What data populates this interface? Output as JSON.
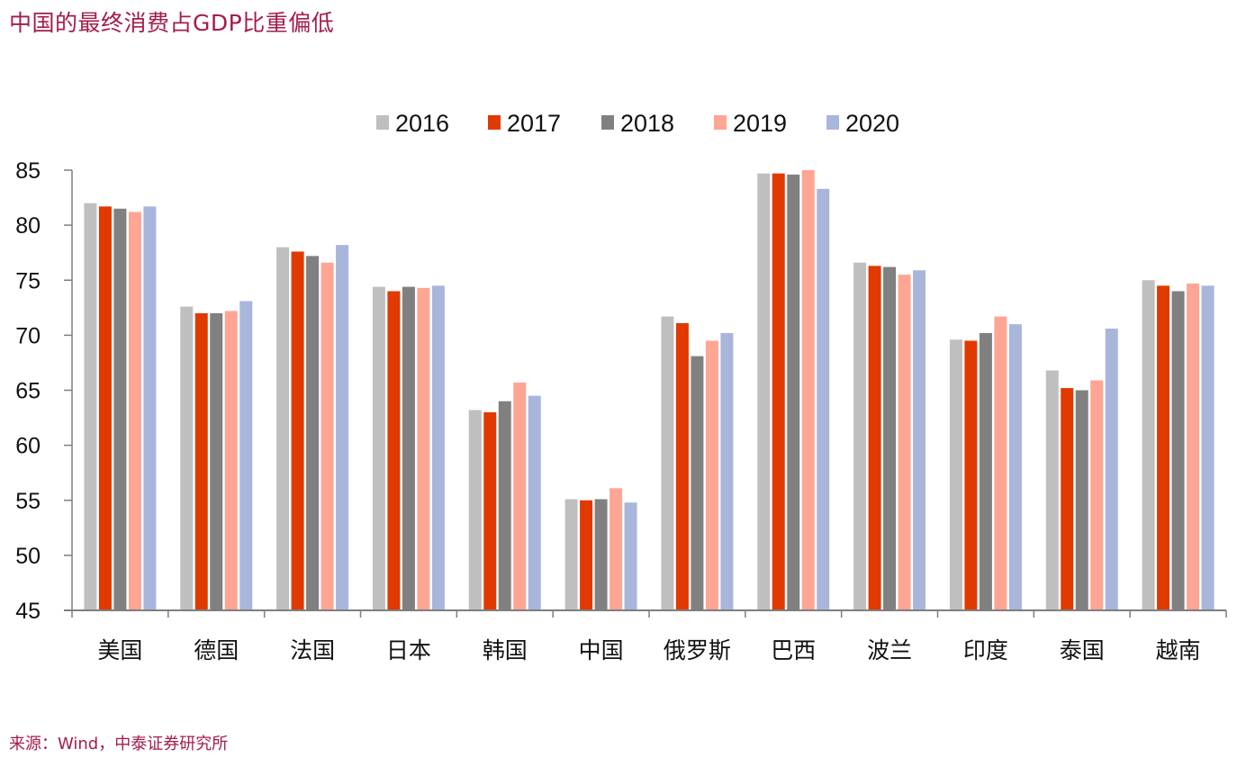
{
  "header": {
    "title": "中国的最终消费占GDP比重偏低"
  },
  "footer": {
    "source": "来源：Wind，中泰证券研究所"
  },
  "chart_data": {
    "type": "bar",
    "title": "",
    "xlabel": "",
    "ylabel": "",
    "ylim": [
      45,
      85
    ],
    "yticks": [
      45,
      50,
      55,
      60,
      65,
      70,
      75,
      80,
      85
    ],
    "grid": false,
    "legend_position": "top-center",
    "categories": [
      "美国",
      "德国",
      "法国",
      "日本",
      "韩国",
      "中国",
      "俄罗斯",
      "巴西",
      "波兰",
      "印度",
      "泰国",
      "越南"
    ],
    "series": [
      {
        "name": "2016",
        "color": "#bfbfbf",
        "values": [
          82.0,
          72.6,
          78.0,
          74.4,
          63.2,
          55.1,
          71.7,
          84.7,
          76.6,
          69.6,
          66.8,
          75.0
        ]
      },
      {
        "name": "2017",
        "color": "#e03a00",
        "values": [
          81.7,
          72.0,
          77.6,
          74.0,
          63.0,
          55.0,
          71.1,
          84.7,
          76.3,
          69.5,
          65.2,
          74.5
        ]
      },
      {
        "name": "2018",
        "color": "#808080",
        "values": [
          81.5,
          72.0,
          77.2,
          74.4,
          64.0,
          55.1,
          68.1,
          84.6,
          76.2,
          70.2,
          65.0,
          74.0
        ]
      },
      {
        "name": "2019",
        "color": "#ffa593",
        "values": [
          81.2,
          72.2,
          76.6,
          74.3,
          65.7,
          56.1,
          69.5,
          85.0,
          75.5,
          71.7,
          65.9,
          74.7
        ]
      },
      {
        "name": "2020",
        "color": "#a9b6db",
        "values": [
          81.7,
          73.1,
          78.2,
          74.5,
          64.5,
          54.8,
          70.2,
          83.3,
          75.9,
          71.0,
          70.6,
          74.5
        ]
      }
    ]
  }
}
